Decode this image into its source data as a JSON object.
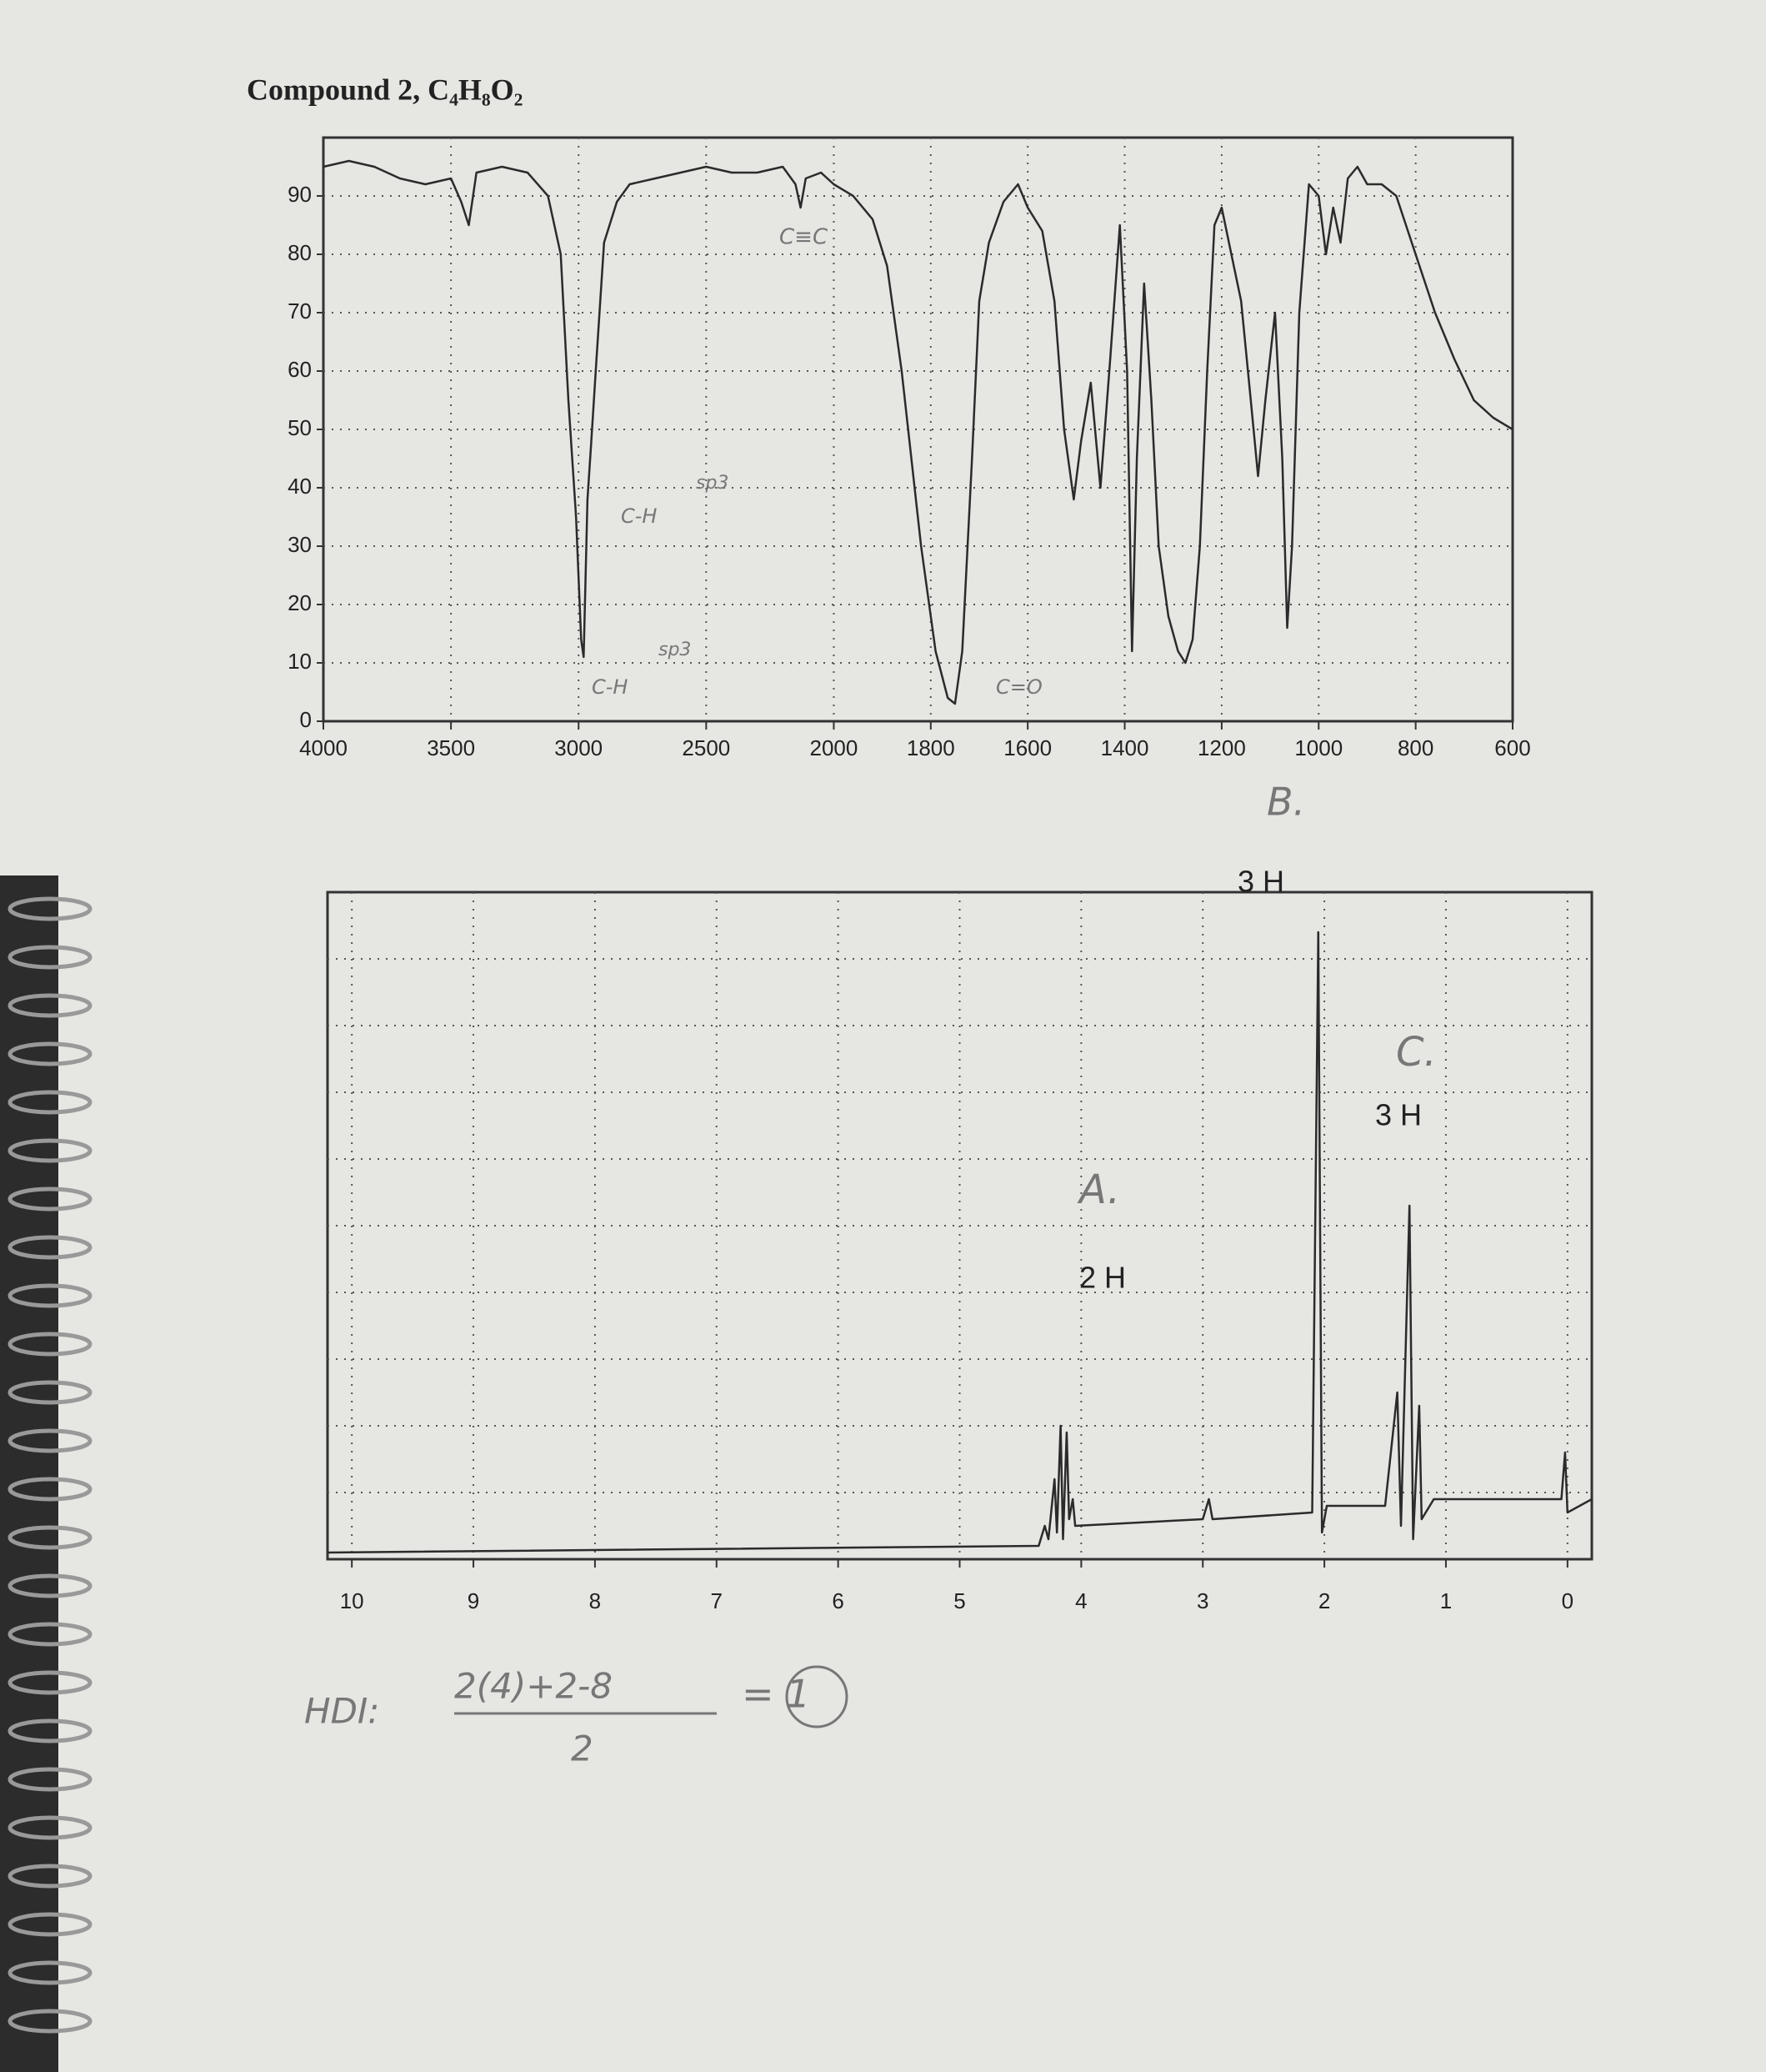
{
  "title": "Compound 2, C₄H₈O₂",
  "chart_data": [
    {
      "type": "line",
      "ylim": [
        0,
        100
      ],
      "yticks": [
        0,
        10,
        20,
        30,
        40,
        50,
        60,
        70,
        80,
        90
      ],
      "xlim": [
        4000,
        600
      ],
      "xticks": [
        4000,
        3500,
        3000,
        2500,
        2000,
        1800,
        1600,
        1400,
        1200,
        1000,
        800,
        600
      ],
      "grid": true,
      "x": [
        4000,
        3900,
        3800,
        3700,
        3600,
        3500,
        3460,
        3430,
        3400,
        3300,
        3200,
        3120,
        3070,
        3040,
        3010,
        2990,
        2980,
        2965,
        2950,
        2930,
        2900,
        2850,
        2800,
        2700,
        2600,
        2500,
        2400,
        2300,
        2200,
        2150,
        2130,
        2110,
        2050,
        2000,
        1960,
        1920,
        1890,
        1860,
        1820,
        1790,
        1765,
        1750,
        1735,
        1715,
        1700,
        1680,
        1650,
        1620,
        1600,
        1570,
        1545,
        1525,
        1505,
        1490,
        1470,
        1450,
        1430,
        1410,
        1395,
        1385,
        1375,
        1360,
        1345,
        1330,
        1310,
        1290,
        1275,
        1260,
        1245,
        1230,
        1215,
        1200,
        1180,
        1160,
        1140,
        1125,
        1110,
        1090,
        1075,
        1065,
        1055,
        1040,
        1020,
        1000,
        985,
        970,
        955,
        940,
        920,
        900,
        870,
        840,
        800,
        760,
        720,
        680,
        640,
        600
      ],
      "series": [
        {
          "color": "#2b2b2b",
          "values": [
            95,
            96,
            95,
            93,
            92,
            93,
            89,
            85,
            94,
            95,
            94,
            90,
            80,
            55,
            35,
            14,
            11,
            38,
            48,
            62,
            82,
            89,
            92,
            93,
            94,
            95,
            94,
            94,
            95,
            92,
            88,
            93,
            94,
            92,
            90,
            86,
            78,
            60,
            30,
            12,
            4,
            3,
            12,
            45,
            72,
            82,
            89,
            92,
            88,
            84,
            72,
            50,
            38,
            48,
            58,
            40,
            62,
            85,
            60,
            12,
            45,
            75,
            55,
            30,
            18,
            12,
            10,
            14,
            30,
            60,
            85,
            88,
            80,
            72,
            55,
            42,
            55,
            70,
            45,
            16,
            30,
            70,
            92,
            90,
            80,
            88,
            82,
            93,
            95,
            92,
            92,
            90,
            80,
            70,
            62,
            55,
            52,
            50
          ]
        }
      ],
      "annotations": [
        "C-H",
        "sp3",
        "C≡C",
        "C-H",
        "sp3",
        "C=O"
      ]
    },
    {
      "type": "line",
      "xlim": [
        10.2,
        -0.2
      ],
      "xticks": [
        10,
        9,
        8,
        7,
        6,
        5,
        4,
        3,
        2,
        1,
        0
      ],
      "ylim": [
        0,
        10
      ],
      "grid": true,
      "x": [
        10.2,
        4.35,
        4.3,
        4.27,
        4.22,
        4.2,
        4.17,
        4.15,
        4.12,
        4.1,
        4.07,
        4.05,
        3.0,
        2.95,
        2.92,
        2.1,
        2.05,
        2.02,
        1.98,
        1.5,
        1.4,
        1.37,
        1.3,
        1.27,
        1.22,
        1.2,
        1.1,
        0.05,
        0.02,
        0,
        -0.2
      ],
      "series": [
        {
          "color": "#2b2b2b",
          "values": [
            0.1,
            0.2,
            0.5,
            0.3,
            1.2,
            0.4,
            2.0,
            0.3,
            1.9,
            0.6,
            0.9,
            0.5,
            0.6,
            0.9,
            0.6,
            0.7,
            9.4,
            0.4,
            0.8,
            0.8,
            2.5,
            0.5,
            5.3,
            0.3,
            2.3,
            0.6,
            0.9,
            0.9,
            1.6,
            0.7,
            0.9
          ]
        }
      ],
      "annotations": [
        "A.",
        "2 H",
        "B.",
        "3 H",
        "C.",
        "3 H"
      ]
    }
  ],
  "handwriting": {
    "label": "HDI:",
    "numerator": "2(4)+2-8",
    "denominator": "2",
    "result": "= 1"
  }
}
